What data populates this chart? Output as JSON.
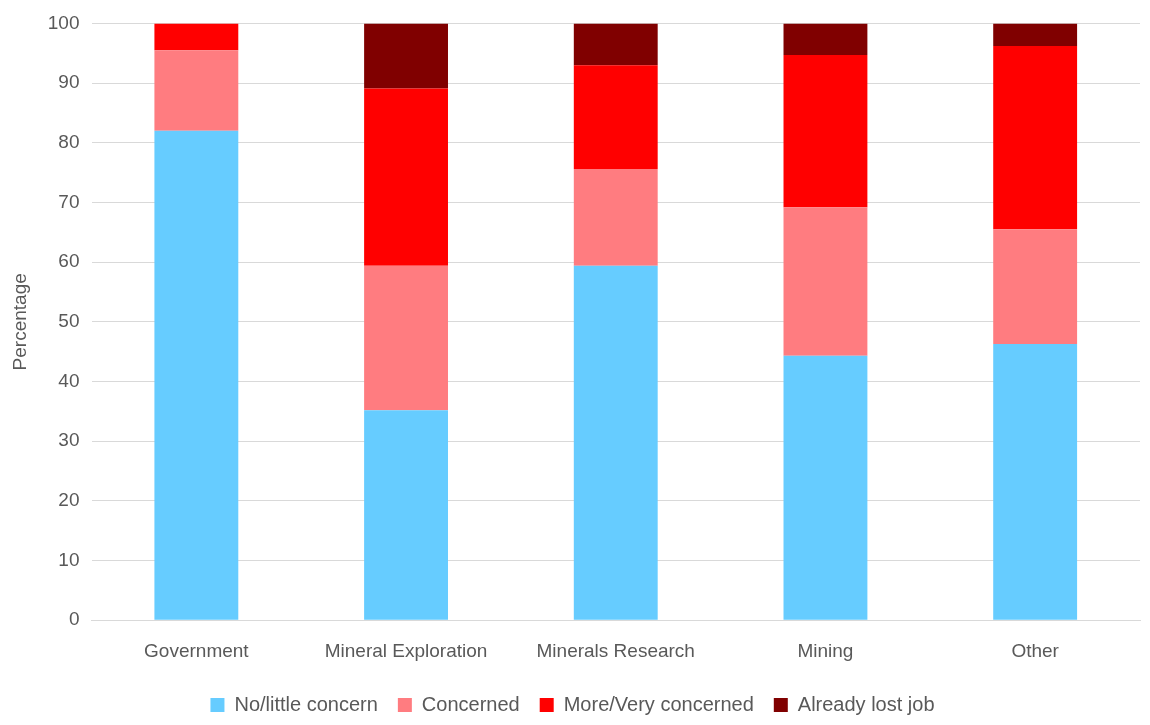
{
  "chart_data": {
    "type": "bar",
    "ylabel": "Percentage",
    "categories": [
      "Government",
      "Mineral Exploration",
      "Minerals Research",
      "Mining",
      "Other"
    ],
    "stacked": true,
    "series": [
      {
        "name": "No/little concern",
        "color": "#66ccff",
        "values": [
          82,
          35.2,
          59.4,
          44.3,
          46.3
        ]
      },
      {
        "name": "Concerned",
        "color": "#ff7c80",
        "values": [
          13.5,
          24.2,
          16.2,
          24.9,
          19.2
        ]
      },
      {
        "name": "More/Very concerned",
        "color": "#ff0000",
        "values": [
          4.5,
          29.7,
          17.4,
          25.5,
          30.7
        ]
      },
      {
        "name": "Already lost job",
        "color": "#800000",
        "values": [
          0,
          10.9,
          7.0,
          5.3,
          3.8
        ]
      }
    ],
    "ylim": [
      0,
      100
    ],
    "yticks": [
      0,
      10,
      20,
      30,
      40,
      50,
      60,
      70,
      80,
      90,
      100
    ],
    "grid": "y",
    "legend": "bottom"
  }
}
